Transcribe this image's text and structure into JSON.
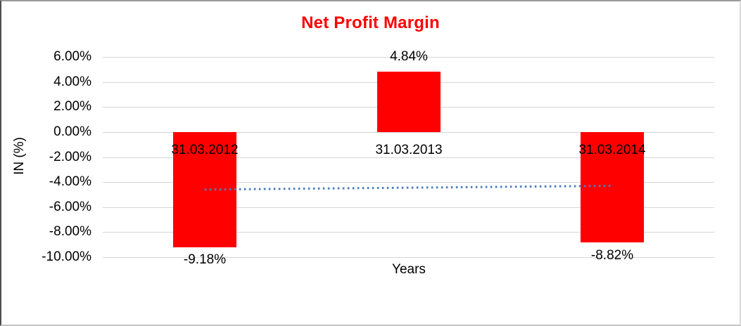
{
  "chart_data": {
    "type": "bar",
    "title": "Net Profit Margin",
    "categories": [
      "31.03.2012",
      "31.03.2013",
      "31.03.2014"
    ],
    "values": [
      -9.18,
      4.84,
      -8.82
    ],
    "data_labels": [
      "-9.18%",
      "4.84%",
      "-8.82%"
    ],
    "xlabel": "Years",
    "ylabel": "IN (%)",
    "ylim": [
      -10,
      6
    ],
    "ytick_values": [
      6,
      4,
      2,
      0,
      -2,
      -4,
      -6,
      -8,
      -10
    ],
    "ytick_labels": [
      "6.00%",
      "4.00%",
      "2.00%",
      "0.00%",
      "-2.00%",
      "-4.00%",
      "-6.00%",
      "-8.00%",
      "-10.00%"
    ],
    "grid": true,
    "legend_position": "none",
    "trendline": {
      "style": "dotted",
      "start_value": -4.6,
      "end_value": -4.3
    },
    "colors": {
      "bar": "#FF0000",
      "title": "#FF0000",
      "gridline": "#D6D6D6",
      "trendline": "#4A7EBB",
      "text": "#000000"
    }
  }
}
